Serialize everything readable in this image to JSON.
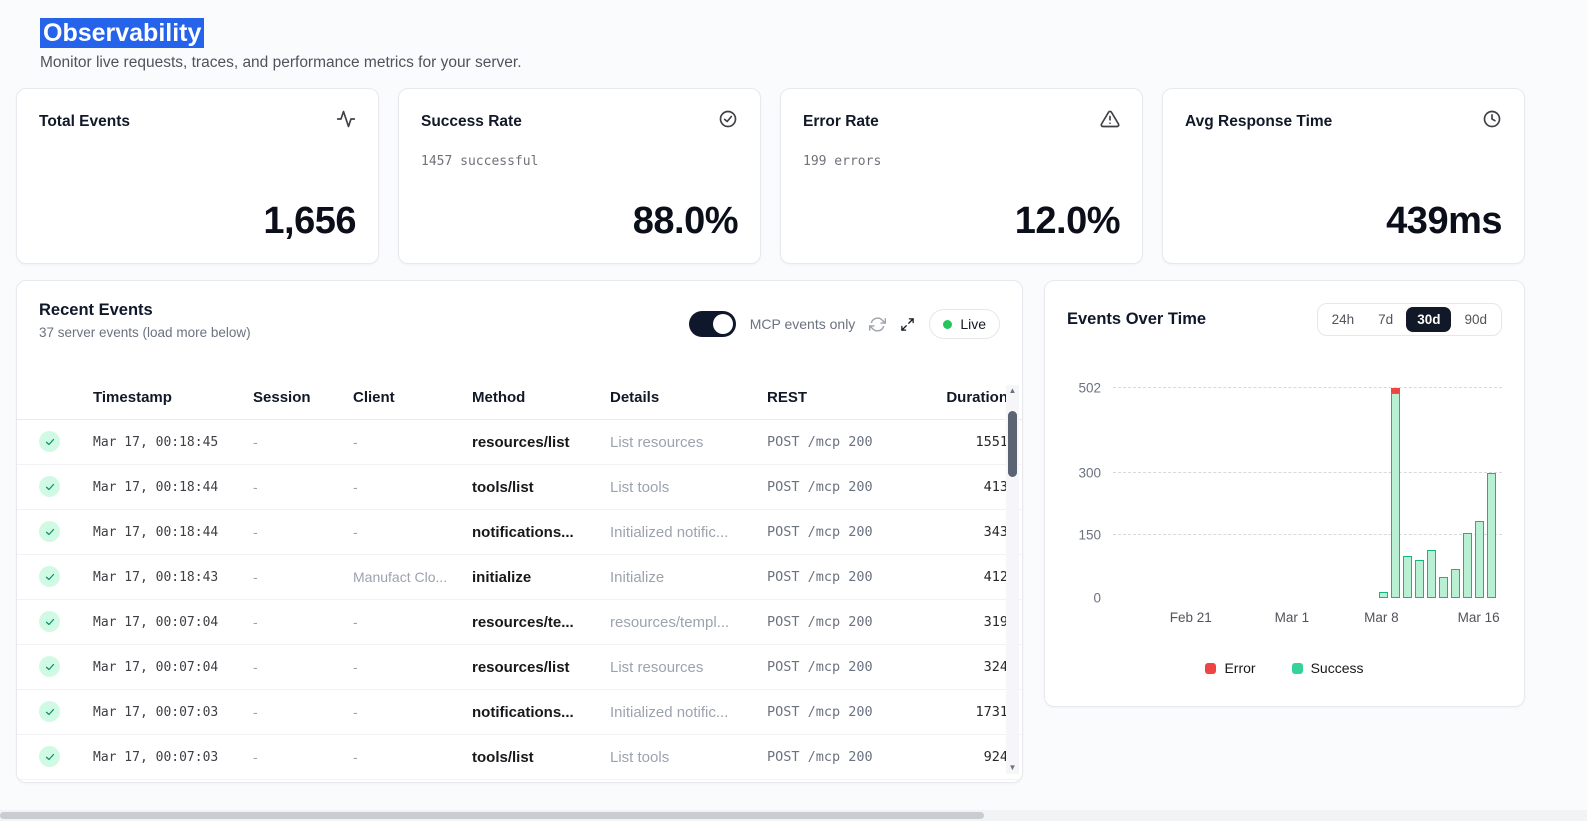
{
  "page": {
    "title": "Observability",
    "subtitle": "Monitor live requests, traces, and performance metrics for your server."
  },
  "colors": {
    "selection_highlight": "#2563eb",
    "success_green": "#22c55e",
    "error_red": "#ef4444",
    "active_range_bg": "#111827",
    "bar_fill": "#b9efd3",
    "bar_border": "#10b981"
  },
  "stats": [
    {
      "label": "Total Events",
      "icon": "activity-icon",
      "subtext": "",
      "value": "1,656"
    },
    {
      "label": "Success Rate",
      "icon": "check-circle-icon",
      "subtext": "1457 successful",
      "value": "88.0%"
    },
    {
      "label": "Error Rate",
      "icon": "alert-triangle-icon",
      "subtext": "199 errors",
      "value": "12.0%"
    },
    {
      "label": "Avg Response Time",
      "icon": "clock-icon",
      "subtext": "",
      "value": "439ms"
    }
  ],
  "recent_events": {
    "title": "Recent Events",
    "subtitle": "37 server events (load more below)",
    "toggle_label": "MCP events only",
    "toggle_on": true,
    "live_label": "Live",
    "columns": [
      "Timestamp",
      "Session",
      "Client",
      "Method",
      "Details",
      "REST",
      "Duration"
    ],
    "rows": [
      {
        "status": "success",
        "timestamp": "Mar 17, 00:18:45",
        "session": "-",
        "client": "-",
        "method": "resources/list",
        "details": "List resources",
        "rest": "POST /mcp 200",
        "duration": "1551"
      },
      {
        "status": "success",
        "timestamp": "Mar 17, 00:18:44",
        "session": "-",
        "client": "-",
        "method": "tools/list",
        "details": "List tools",
        "rest": "POST /mcp 200",
        "duration": "413"
      },
      {
        "status": "success",
        "timestamp": "Mar 17, 00:18:44",
        "session": "-",
        "client": "-",
        "method": "notifications...",
        "details": "Initialized notific...",
        "rest": "POST /mcp 200",
        "duration": "343"
      },
      {
        "status": "success",
        "timestamp": "Mar 17, 00:18:43",
        "session": "-",
        "client": "Manufact Clo...",
        "method": "initialize",
        "details": "Initialize",
        "rest": "POST /mcp 200",
        "duration": "412"
      },
      {
        "status": "success",
        "timestamp": "Mar 17, 00:07:04",
        "session": "-",
        "client": "-",
        "method": "resources/te...",
        "details": "resources/templ...",
        "rest": "POST /mcp 200",
        "duration": "319"
      },
      {
        "status": "success",
        "timestamp": "Mar 17, 00:07:04",
        "session": "-",
        "client": "-",
        "method": "resources/list",
        "details": "List resources",
        "rest": "POST /mcp 200",
        "duration": "324"
      },
      {
        "status": "success",
        "timestamp": "Mar 17, 00:07:03",
        "session": "-",
        "client": "-",
        "method": "notifications...",
        "details": "Initialized notific...",
        "rest": "POST /mcp 200",
        "duration": "1731"
      },
      {
        "status": "success",
        "timestamp": "Mar 17, 00:07:03",
        "session": "-",
        "client": "-",
        "method": "tools/list",
        "details": "List tools",
        "rest": "POST /mcp 200",
        "duration": "924"
      }
    ]
  },
  "chart": {
    "title": "Events Over Time",
    "ranges": [
      {
        "label": "24h",
        "active": false
      },
      {
        "label": "7d",
        "active": false
      },
      {
        "label": "30d",
        "active": true
      },
      {
        "label": "90d",
        "active": false
      }
    ]
  },
  "chart_data": {
    "type": "bar",
    "title": "Events Over Time",
    "stacked": true,
    "y_ticks": [
      0,
      150,
      300,
      502
    ],
    "ylim": [
      0,
      502
    ],
    "grid": "dashed-horizontal",
    "legend_position": "bottom",
    "x_axis_labels": [
      {
        "label": "Feb 21",
        "pos_pct": 20
      },
      {
        "label": "Mar 1",
        "pos_pct": 46
      },
      {
        "label": "Mar 8",
        "pos_pct": 69
      },
      {
        "label": "Mar 16",
        "pos_pct": 94
      }
    ],
    "legend": [
      {
        "name": "Error",
        "color": "#ef4444"
      },
      {
        "name": "Success",
        "color": "#34d399"
      }
    ],
    "bars": [
      {
        "x": "Mar 7",
        "success": 15,
        "error": 0
      },
      {
        "x": "Mar 8",
        "success": 490,
        "error": 12
      },
      {
        "x": "Mar 9",
        "success": 100,
        "error": 0
      },
      {
        "x": "Mar 10",
        "success": 90,
        "error": 0
      },
      {
        "x": "Mar 11",
        "success": 115,
        "error": 0
      },
      {
        "x": "Mar 12",
        "success": 50,
        "error": 0
      },
      {
        "x": "Mar 13",
        "success": 70,
        "error": 0
      },
      {
        "x": "Mar 14",
        "success": 155,
        "error": 0
      },
      {
        "x": "Mar 15",
        "success": 185,
        "error": 0
      },
      {
        "x": "Mar 16",
        "success": 300,
        "error": 0
      }
    ]
  }
}
